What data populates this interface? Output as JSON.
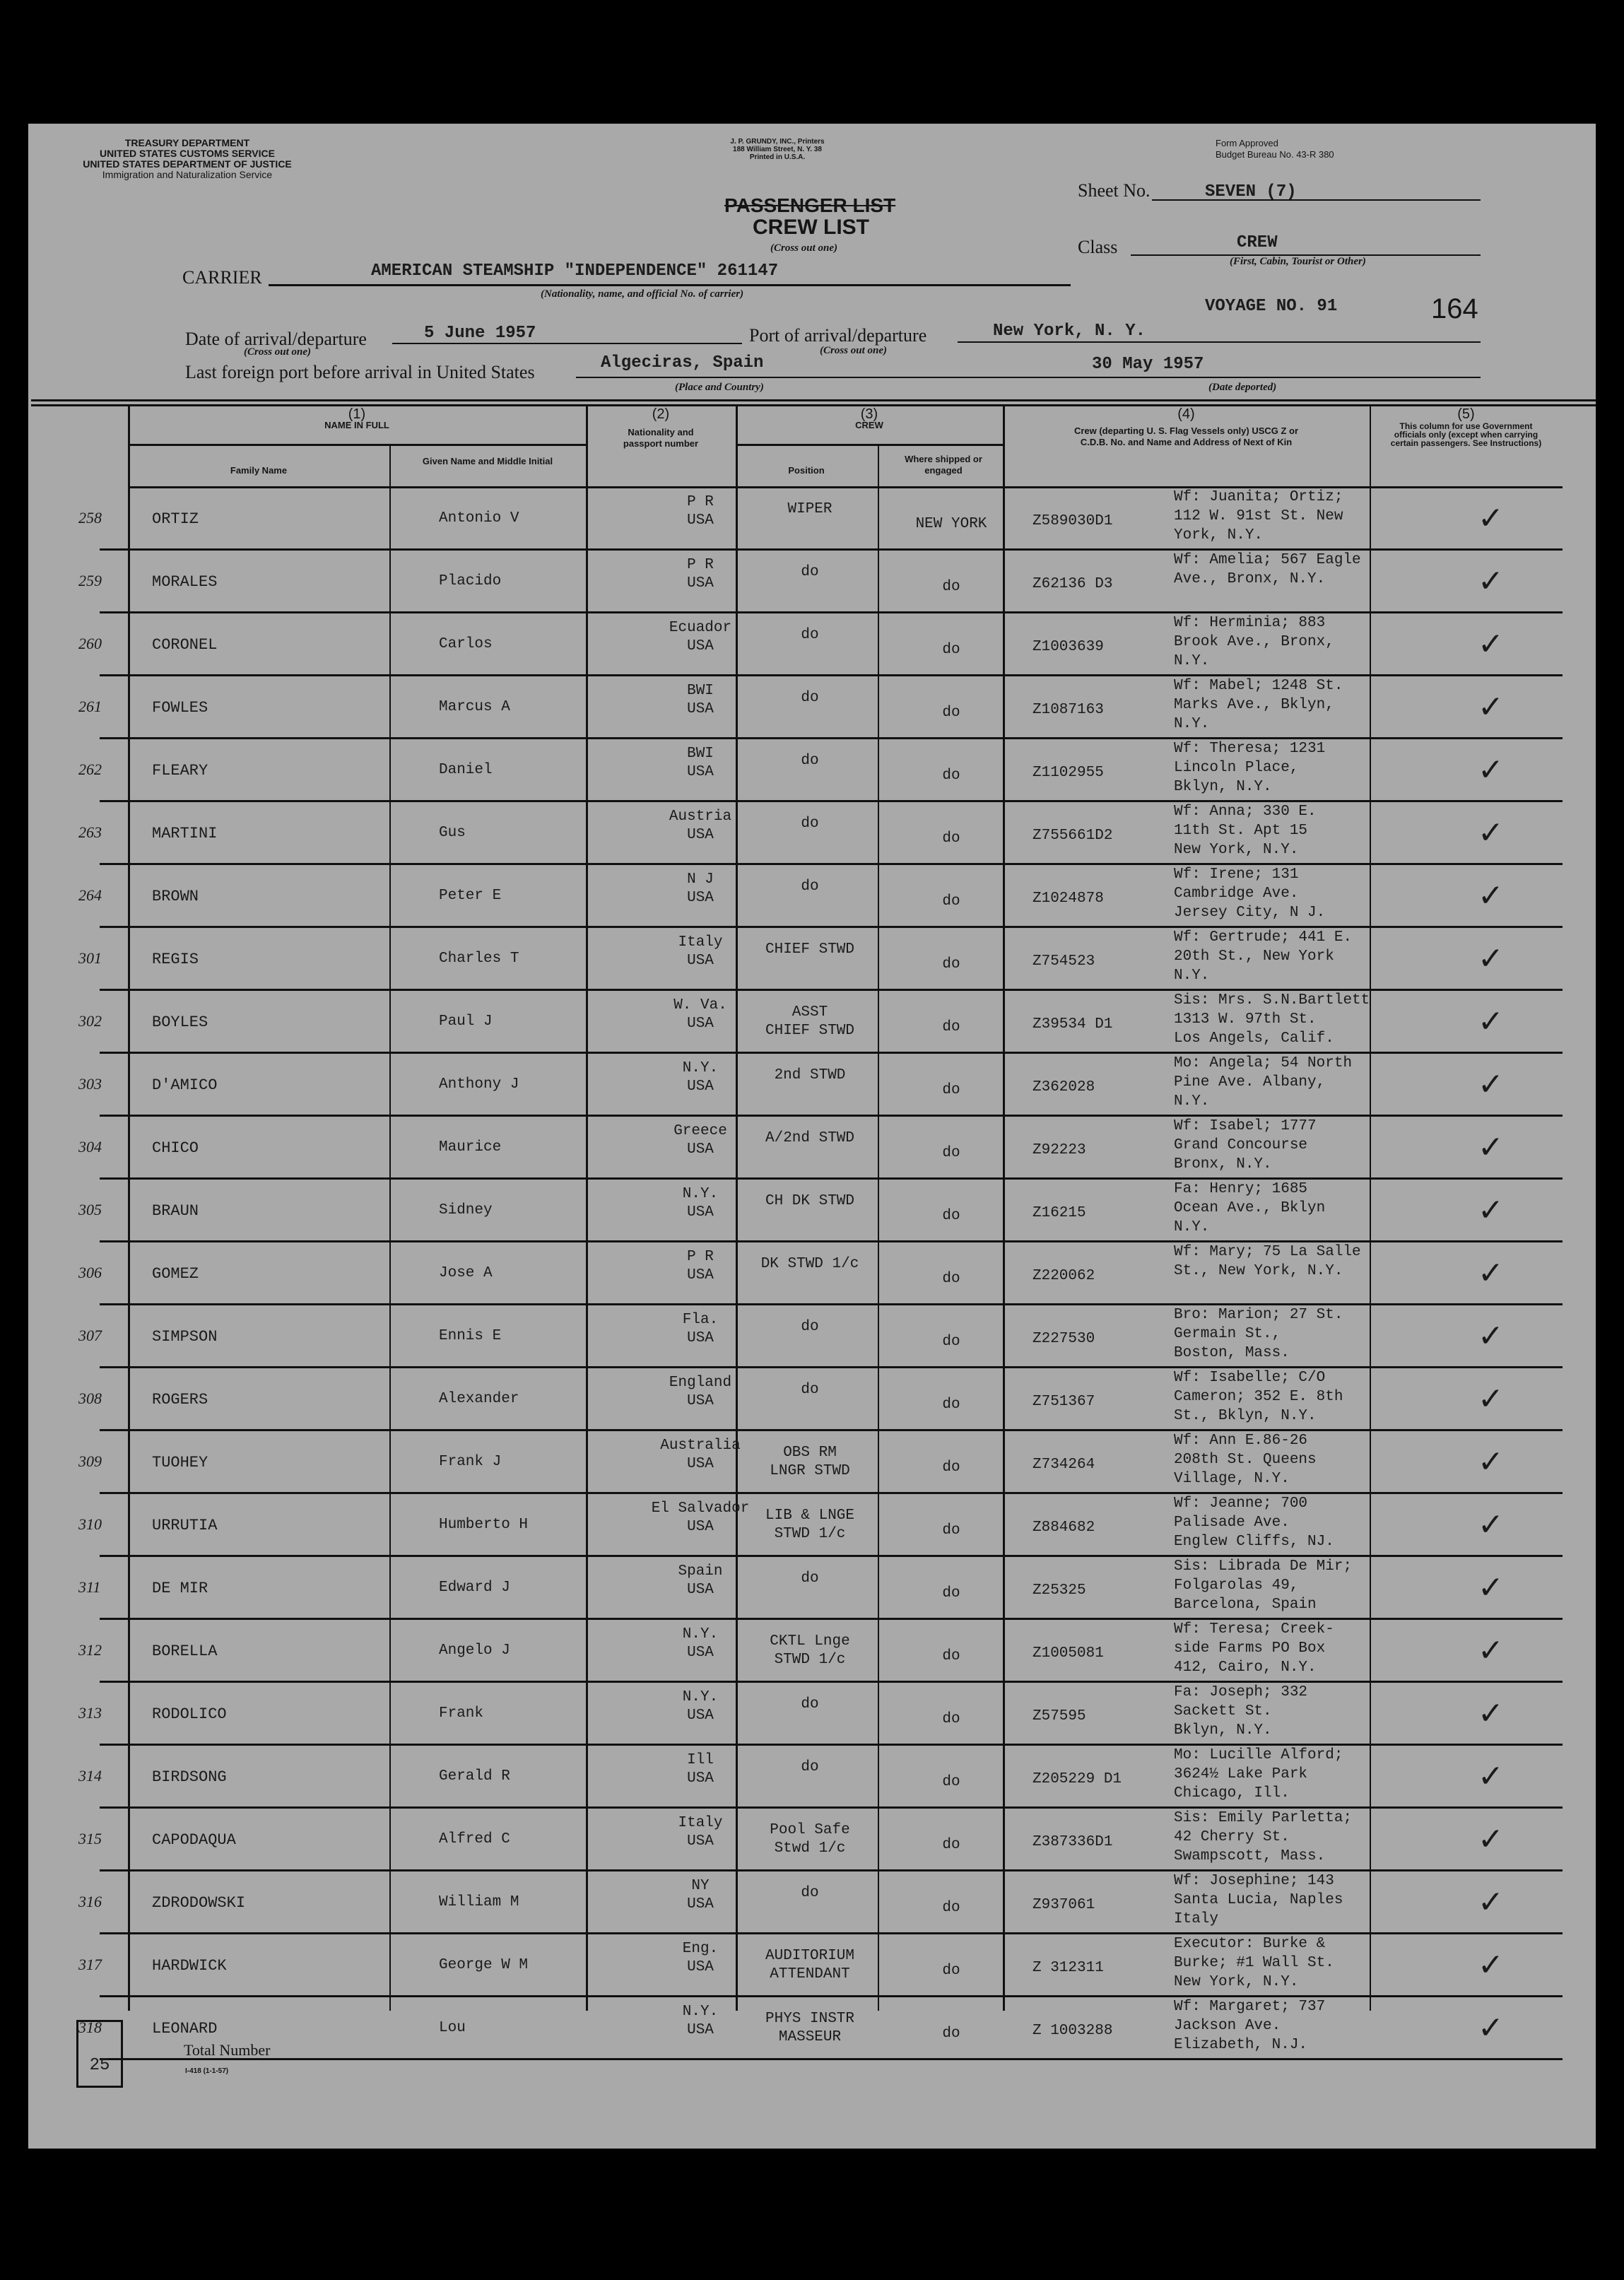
{
  "header": {
    "agency_lines": [
      "TREASURY DEPARTMENT",
      "UNITED STATES CUSTOMS SERVICE",
      "UNITED STATES DEPARTMENT OF JUSTICE",
      "Immigration and Naturalization Service"
    ],
    "printer_lines": [
      "J. P. GRUNDY, INC., Printers",
      "188 William Street, N. Y. 38",
      "Printed in U.S.A."
    ],
    "form_approved": [
      "Form Approved",
      "Budget Bureau No. 43-R 380"
    ],
    "title_crossed": "PASSENGER LIST",
    "title": "CREW LIST",
    "cross_out_one": "(Cross out one)",
    "sheet_label": "Sheet No.",
    "sheet_value": "SEVEN (7)",
    "class_label": "Class",
    "class_value": "CREW",
    "class_caption": "(First, Cabin, Tourist or Other)",
    "carrier_label": "CARRIER",
    "carrier_value": "AMERICAN STEAMSHIP \"INDEPENDENCE\" 261147",
    "carrier_caption": "(Nationality, name, and official No. of carrier)",
    "voyage": "VOYAGE NO. 91",
    "page_number": "164",
    "date_label": "Date of arrival/departure",
    "date_value": "5 June 1957",
    "port_label": "Port of arrival/departure",
    "port_value": "New York, N. Y.",
    "last_port_label": "Last foreign port before arrival in United States",
    "last_port_value": "Algeciras, Spain",
    "place_caption": "(Place and Country)",
    "date_departed": "30 May 1957",
    "date_departed_caption": "(Date deported)"
  },
  "columns": {
    "c1": "(1)",
    "c1_title": "NAME IN FULL",
    "family": "Family Name",
    "given": "Given Name and Middle Initial",
    "c2": "(2)",
    "nationality": "Nationality and passport number",
    "c3": "(3)",
    "c3_title": "CREW",
    "position": "Position",
    "shipped": "Where shipped or engaged",
    "c4": "(4)",
    "c4_title": "Crew (departing U. S. Flag Vessels only) USCG Z or C.D.B. No. and Name and Address of Next of Kin",
    "c5": "(5)",
    "c5_title": "This column for use Government officials only (except when carrying certain passengers. See Instructions)"
  },
  "rows": [
    {
      "ln": "258",
      "fam": "ORTIZ",
      "giv": "Antonio V",
      "nat": "P R\nUSA",
      "pos": "WIPER",
      "shp": "NEW YORK",
      "z": "Z589030D1",
      "adr": "Wf: Juanita; Ortiz;\n112 W. 91st St. New\nYork, N.Y."
    },
    {
      "ln": "259",
      "fam": "MORALES",
      "giv": "Placido",
      "nat": "P R\nUSA",
      "pos": "do",
      "shp": "do",
      "z": "Z62136 D3",
      "adr": "Wf: Amelia; 567 Eagle\nAve., Bronx, N.Y."
    },
    {
      "ln": "260",
      "fam": "CORONEL",
      "giv": "Carlos",
      "nat": "Ecuador\nUSA",
      "pos": "do",
      "shp": "do",
      "z": "Z1003639",
      "adr": "Wf: Herminia; 883\nBrook Ave., Bronx,\nN.Y."
    },
    {
      "ln": "261",
      "fam": "FOWLES",
      "giv": "Marcus A",
      "nat": "BWI\nUSA",
      "pos": "do",
      "shp": "do",
      "z": "Z1087163",
      "adr": "Wf: Mabel; 1248 St.\nMarks Ave., Bklyn,\nN.Y."
    },
    {
      "ln": "262",
      "fam": "FLEARY",
      "giv": "Daniel",
      "nat": "BWI\nUSA",
      "pos": "do",
      "shp": "do",
      "z": "Z1102955",
      "adr": "Wf: Theresa; 1231\nLincoln Place,\nBklyn, N.Y."
    },
    {
      "ln": "263",
      "fam": "MARTINI",
      "giv": "Gus",
      "nat": "Austria\nUSA",
      "pos": "do",
      "shp": "do",
      "z": "Z755661D2",
      "adr": "Wf: Anna; 330 E.\n11th St. Apt 15\nNew York, N.Y."
    },
    {
      "ln": "264",
      "fam": "BROWN",
      "giv": "Peter E",
      "nat": "N J\nUSA",
      "pos": "do",
      "shp": "do",
      "z": "Z1024878",
      "adr": "Wf: Irene; 131\nCambridge Ave.\nJersey City, N J."
    },
    {
      "ln": "301",
      "fam": "REGIS",
      "giv": "Charles T",
      "nat": "Italy\nUSA",
      "pos": "CHIEF STWD",
      "shp": "do",
      "z": "Z754523",
      "adr": "Wf: Gertrude; 441 E.\n20th St., New York\nN.Y."
    },
    {
      "ln": "302",
      "fam": "BOYLES",
      "giv": "Paul J",
      "nat": "W. Va.\nUSA",
      "pos": "ASST\nCHIEF STWD",
      "shp": "do",
      "z": "Z39534 D1",
      "adr": "Sis: Mrs. S.N.Bartlett\n1313 W. 97th St.\nLos Angels, Calif."
    },
    {
      "ln": "303",
      "fam": "D'AMICO",
      "giv": "Anthony J",
      "nat": "N.Y.\nUSA",
      "pos": "2nd STWD",
      "shp": "do",
      "z": "Z362028",
      "adr": "Mo: Angela; 54 North\nPine Ave. Albany,\nN.Y."
    },
    {
      "ln": "304",
      "fam": "CHICO",
      "giv": "Maurice",
      "nat": "Greece\nUSA",
      "pos": "A/2nd STWD",
      "shp": "do",
      "z": "Z92223",
      "adr": "Wf: Isabel; 1777\nGrand Concourse\nBronx, N.Y."
    },
    {
      "ln": "305",
      "fam": "BRAUN",
      "giv": "Sidney",
      "nat": "N.Y.\nUSA",
      "pos": "CH DK STWD",
      "shp": "do",
      "z": "Z16215",
      "adr": "Fa: Henry; 1685\nOcean Ave., Bklyn\nN.Y."
    },
    {
      "ln": "306",
      "fam": "GOMEZ",
      "giv": "Jose A",
      "nat": "P R\nUSA",
      "pos": "DK STWD 1/c",
      "shp": "do",
      "z": "Z220062",
      "adr": "Wf: Mary; 75 La Salle\nSt., New York, N.Y."
    },
    {
      "ln": "307",
      "fam": "SIMPSON",
      "giv": "Ennis E",
      "nat": "Fla.\nUSA",
      "pos": "do",
      "shp": "do",
      "z": "Z227530",
      "adr": "Bro: Marion; 27 St.\nGermain St.,\nBoston, Mass."
    },
    {
      "ln": "308",
      "fam": "ROGERS",
      "giv": "Alexander",
      "nat": "England\nUSA",
      "pos": "do",
      "shp": "do",
      "z": "Z751367",
      "adr": "Wf: Isabelle; C/O\nCameron; 352 E. 8th\nSt., Bklyn, N.Y."
    },
    {
      "ln": "309",
      "fam": "TUOHEY",
      "giv": "Frank J",
      "nat": "Australia\nUSA",
      "pos": "OBS RM\nLNGR STWD",
      "shp": "do",
      "z": "Z734264",
      "adr": "Wf: Ann E.86-26\n208th St. Queens\nVillage, N.Y."
    },
    {
      "ln": "310",
      "fam": "URRUTIA",
      "giv": "Humberto H",
      "nat": "El Salvador\nUSA",
      "pos": "LIB & LNGE\nSTWD 1/c",
      "shp": "do",
      "z": "Z884682",
      "adr": "Wf: Jeanne; 700\nPalisade Ave.\nEnglew Cliffs, NJ."
    },
    {
      "ln": "311",
      "fam": "DE MIR",
      "giv": "Edward J",
      "nat": "Spain\nUSA",
      "pos": "do",
      "shp": "do",
      "z": "Z25325",
      "adr": "Sis: Librada De Mir;\nFolgarolas 49,\nBarcelona, Spain"
    },
    {
      "ln": "312",
      "fam": "BORELLA",
      "giv": "Angelo J",
      "nat": "N.Y.\nUSA",
      "pos": "CKTL Lnge\nSTWD 1/c",
      "shp": "do",
      "z": "Z1005081",
      "adr": "Wf: Teresa; Creek-\nside Farms PO Box\n412, Cairo, N.Y."
    },
    {
      "ln": "313",
      "fam": "RODOLICO",
      "giv": "Frank",
      "nat": "N.Y.\nUSA",
      "pos": "do",
      "shp": "do",
      "z": "Z57595",
      "adr": "Fa: Joseph; 332\nSackett St.\nBklyn, N.Y."
    },
    {
      "ln": "314",
      "fam": "BIRDSONG",
      "giv": "Gerald R",
      "nat": "Ill\nUSA",
      "pos": "do",
      "shp": "do",
      "z": "Z205229 D1",
      "adr": "Mo: Lucille Alford;\n3624½ Lake Park\nChicago, Ill."
    },
    {
      "ln": "315",
      "fam": "CAPODAQUA",
      "giv": "Alfred C",
      "nat": "Italy\nUSA",
      "pos": "Pool Safe\nStwd 1/c",
      "shp": "do",
      "z": "Z387336D1",
      "adr": "Sis: Emily Parletta;\n42 Cherry St.\nSwampscott, Mass."
    },
    {
      "ln": "316",
      "fam": "ZDRODOWSKI",
      "giv": "William M",
      "nat": "NY\nUSA",
      "pos": "do",
      "shp": "do",
      "z": "Z937061",
      "adr": "Wf: Josephine; 143\nSanta Lucia, Naples\nItaly"
    },
    {
      "ln": "317",
      "fam": "HARDWICK",
      "giv": "George W M",
      "nat": "Eng.\nUSA",
      "pos": "AUDITORIUM\nATTENDANT",
      "shp": "do",
      "z": "Z 312311",
      "adr": "Executor: Burke &\nBurke; #1 Wall St.\nNew York, N.Y."
    },
    {
      "ln": "318",
      "fam": "LEONARD",
      "giv": "Lou",
      "nat": "N.Y.\nUSA",
      "pos": "PHYS INSTR\nMASSEUR",
      "shp": "do",
      "z": "Z 1003288",
      "adr": "Wf: Margaret; 737\nJackson Ave.\nElizabeth, N.J."
    }
  ],
  "check_mark": "✓",
  "footer": {
    "total_value": "25",
    "total_label": "Total Number",
    "form_code": "I-418 (1-1-57)"
  }
}
